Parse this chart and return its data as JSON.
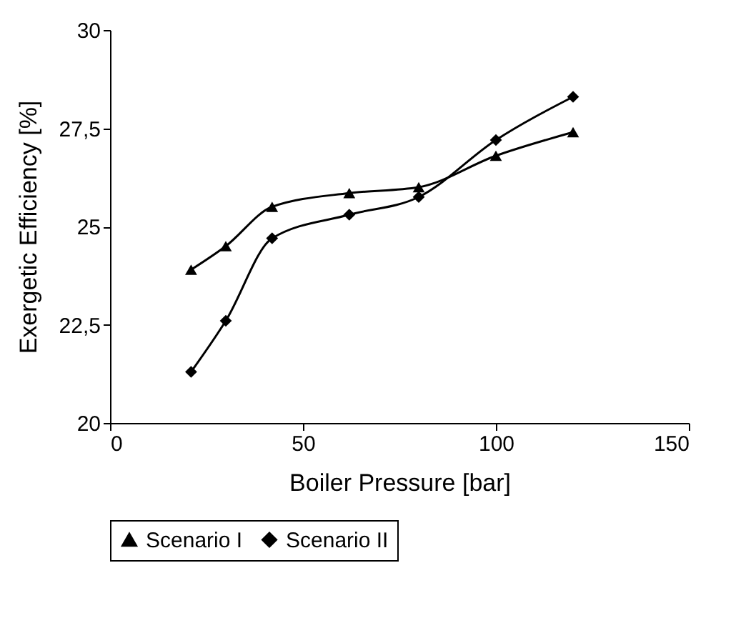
{
  "chart_data": {
    "type": "line",
    "xlabel": "Boiler Pressure [bar]",
    "ylabel": "Exergetic Efficiency [%]",
    "xlim": [
      0,
      150
    ],
    "xticks": [
      0,
      50,
      100,
      150
    ],
    "ylim": [
      20,
      30
    ],
    "yticks": [
      20,
      {
        "value": 22.5,
        "label": "22,5"
      },
      25,
      {
        "value": 27.5,
        "label": "27,5"
      },
      30
    ],
    "grid": false,
    "legend": "bottom",
    "series": [
      {
        "name": "Scenario I",
        "color": "#000000",
        "marker": "triangle",
        "x": [
          21,
          30,
          42,
          62,
          80,
          100,
          120
        ],
        "values": [
          23.9,
          24.5,
          25.5,
          25.85,
          26.0,
          26.8,
          27.4
        ]
      },
      {
        "name": "Scenario II",
        "color": "#000000",
        "marker": "diamond",
        "x": [
          21,
          30,
          42,
          62,
          80,
          100,
          120
        ],
        "values": [
          21.3,
          22.6,
          24.7,
          25.3,
          25.75,
          27.2,
          28.3
        ]
      }
    ]
  }
}
